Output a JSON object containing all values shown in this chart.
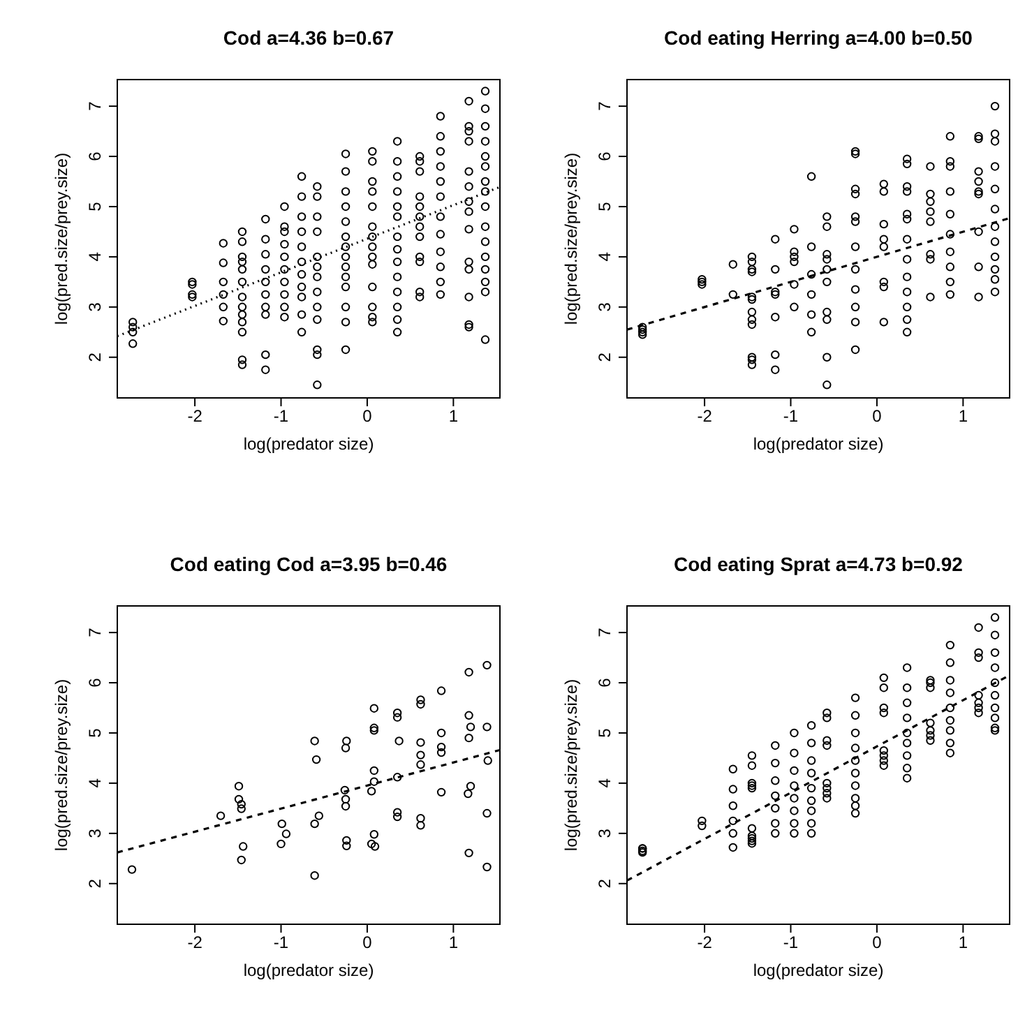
{
  "chart_data": [
    {
      "type": "scatter",
      "title": "Cod a=4.36 b=0.67",
      "xlabel": "log(predator size)",
      "ylabel": "log(pred.size/prey.size)",
      "xlim": [
        -2.9,
        1.54
      ],
      "ylim": [
        1.19,
        7.53
      ],
      "xticks": [
        -2,
        -1,
        0,
        1
      ],
      "yticks": [
        2,
        3,
        4,
        5,
        6,
        7
      ],
      "series": [
        {
          "marker": "circle",
          "color": "#000000",
          "x": [
            -2.72,
            -2.72,
            -2.72,
            -2.72,
            -2.03,
            -2.03,
            -2.03,
            -2.03,
            -1.67,
            -1.67,
            -1.67,
            -1.67,
            -1.67,
            -1.67,
            -1.45,
            -1.45,
            -1.45,
            -1.45,
            -1.45,
            -1.45,
            -1.45,
            -1.45,
            -1.45,
            -1.45,
            -1.45,
            -1.45,
            -1.45,
            -1.18,
            -1.18,
            -1.18,
            -1.18,
            -1.18,
            -1.18,
            -1.18,
            -1.18,
            -1.18,
            -1.18,
            -0.96,
            -0.96,
            -0.96,
            -0.96,
            -0.96,
            -0.96,
            -0.96,
            -0.96,
            -0.96,
            -0.96,
            -0.76,
            -0.76,
            -0.76,
            -0.76,
            -0.76,
            -0.76,
            -0.76,
            -0.76,
            -0.76,
            -0.76,
            -0.76,
            -0.58,
            -0.58,
            -0.58,
            -0.58,
            -0.58,
            -0.58,
            -0.58,
            -0.58,
            -0.58,
            -0.58,
            -0.58,
            -0.58,
            -0.58,
            -0.25,
            -0.25,
            -0.25,
            -0.25,
            -0.25,
            -0.25,
            -0.25,
            -0.25,
            -0.25,
            -0.25,
            -0.25,
            -0.25,
            -0.25,
            -0.25,
            0.06,
            0.06,
            0.06,
            0.06,
            0.06,
            0.06,
            0.06,
            0.06,
            0.06,
            0.06,
            0.06,
            0.06,
            0.06,
            0.06,
            0.35,
            0.35,
            0.35,
            0.35,
            0.35,
            0.35,
            0.35,
            0.35,
            0.35,
            0.35,
            0.35,
            0.35,
            0.35,
            0.35,
            0.61,
            0.61,
            0.61,
            0.61,
            0.61,
            0.61,
            0.61,
            0.61,
            0.61,
            0.61,
            0.61,
            0.61,
            0.85,
            0.85,
            0.85,
            0.85,
            0.85,
            0.85,
            0.85,
            0.85,
            0.85,
            0.85,
            0.85,
            0.85,
            1.18,
            1.18,
            1.18,
            1.18,
            1.18,
            1.18,
            1.18,
            1.18,
            1.18,
            1.18,
            1.18,
            1.18,
            1.18,
            1.18,
            1.37,
            1.37,
            1.37,
            1.37,
            1.37,
            1.37,
            1.37,
            1.37,
            1.37,
            1.37,
            1.37,
            1.37,
            1.37,
            1.37,
            1.37,
            1.37
          ],
          "values": [
            2.27,
            2.5,
            2.6,
            2.7,
            3.2,
            3.25,
            3.45,
            3.5,
            2.72,
            3.0,
            3.25,
            3.5,
            3.88,
            4.27,
            1.85,
            1.95,
            2.5,
            2.7,
            2.85,
            3.0,
            3.2,
            3.5,
            3.75,
            3.9,
            4.0,
            4.3,
            4.5,
            1.75,
            2.05,
            2.85,
            3.0,
            3.25,
            3.5,
            3.75,
            4.05,
            4.35,
            4.75,
            2.8,
            3.0,
            3.25,
            3.5,
            3.75,
            4.0,
            4.25,
            4.5,
            4.6,
            5.0,
            2.5,
            2.85,
            3.2,
            3.4,
            3.65,
            3.9,
            4.2,
            4.5,
            4.8,
            5.2,
            5.6,
            1.45,
            2.05,
            2.15,
            2.75,
            3.0,
            3.3,
            3.6,
            3.8,
            4.0,
            4.5,
            4.8,
            5.2,
            5.4,
            2.15,
            2.7,
            3.0,
            3.4,
            3.6,
            3.8,
            4.0,
            4.2,
            4.4,
            4.7,
            5.0,
            5.3,
            5.7,
            6.05,
            2.7,
            2.8,
            3.0,
            3.4,
            3.85,
            4.0,
            4.2,
            4.4,
            4.6,
            5.0,
            5.3,
            5.5,
            5.9,
            6.1,
            2.5,
            2.75,
            3.0,
            3.3,
            3.6,
            3.9,
            4.15,
            4.4,
            4.8,
            5.0,
            5.3,
            5.6,
            5.9,
            6.3,
            3.2,
            3.3,
            3.9,
            4.0,
            4.4,
            4.6,
            4.8,
            5.0,
            5.2,
            5.7,
            5.9,
            6.0,
            3.25,
            3.5,
            3.8,
            4.1,
            4.45,
            4.8,
            5.2,
            5.5,
            5.8,
            6.1,
            6.4,
            6.8,
            2.6,
            2.65,
            3.2,
            3.75,
            3.9,
            4.55,
            4.9,
            5.1,
            5.4,
            5.7,
            6.3,
            6.5,
            6.6,
            7.1,
            2.35,
            3.3,
            3.5,
            3.75,
            4.0,
            4.3,
            4.6,
            5.0,
            5.3,
            5.5,
            5.8,
            6.0,
            6.3,
            6.6,
            6.95,
            7.3
          ]
        },
        {
          "type": "line",
          "color": "#000000",
          "line_style": "dotted",
          "x": [
            -2.9,
            1.54
          ],
          "values": [
            2.42,
            5.39
          ]
        }
      ]
    },
    {
      "type": "scatter",
      "title": "Cod eating Herring a=4.00 b=0.50",
      "xlabel": "log(predator size)",
      "ylabel": "log(pred.size/prey.size)",
      "xlim": [
        -2.9,
        1.54
      ],
      "ylim": [
        1.19,
        7.53
      ],
      "xticks": [
        -2,
        -1,
        0,
        1
      ],
      "yticks": [
        2,
        3,
        4,
        5,
        6,
        7
      ],
      "series": [
        {
          "marker": "circle",
          "color": "#000000",
          "x": [
            -2.72,
            -2.72,
            -2.72,
            -2.72,
            -2.03,
            -2.03,
            -2.03,
            -1.67,
            -1.67,
            -1.45,
            -1.45,
            -1.45,
            -1.45,
            -1.45,
            -1.45,
            -1.45,
            -1.45,
            -1.45,
            -1.45,
            -1.45,
            -1.45,
            -1.18,
            -1.18,
            -1.18,
            -1.18,
            -1.18,
            -1.18,
            -1.18,
            -0.96,
            -0.96,
            -0.96,
            -0.96,
            -0.96,
            -0.96,
            -0.76,
            -0.76,
            -0.76,
            -0.76,
            -0.76,
            -0.76,
            -0.58,
            -0.58,
            -0.58,
            -0.58,
            -0.58,
            -0.58,
            -0.58,
            -0.58,
            -0.58,
            -0.58,
            -0.25,
            -0.25,
            -0.25,
            -0.25,
            -0.25,
            -0.25,
            -0.25,
            -0.25,
            -0.25,
            -0.25,
            -0.25,
            -0.25,
            0.08,
            0.08,
            0.08,
            0.08,
            0.08,
            0.08,
            0.08,
            0.08,
            0.35,
            0.35,
            0.35,
            0.35,
            0.35,
            0.35,
            0.35,
            0.35,
            0.35,
            0.35,
            0.35,
            0.35,
            0.35,
            0.62,
            0.62,
            0.62,
            0.62,
            0.62,
            0.62,
            0.62,
            0.62,
            0.85,
            0.85,
            0.85,
            0.85,
            0.85,
            0.85,
            0.85,
            0.85,
            0.85,
            0.85,
            1.18,
            1.18,
            1.18,
            1.18,
            1.18,
            1.18,
            1.18,
            1.18,
            1.18,
            1.37,
            1.37,
            1.37,
            1.37,
            1.37,
            1.37,
            1.37,
            1.37,
            1.37,
            1.37,
            1.37,
            1.37
          ],
          "values": [
            2.45,
            2.5,
            2.55,
            2.6,
            3.45,
            3.5,
            3.55,
            3.25,
            3.85,
            1.85,
            1.95,
            2.0,
            2.65,
            2.75,
            2.9,
            3.15,
            3.2,
            3.7,
            3.75,
            3.9,
            4.0,
            1.75,
            2.05,
            2.8,
            3.25,
            3.3,
            3.75,
            4.35,
            3.0,
            3.45,
            3.9,
            4.0,
            4.1,
            4.55,
            2.5,
            2.85,
            3.25,
            3.65,
            4.2,
            5.6,
            1.45,
            2.0,
            2.75,
            2.9,
            3.5,
            3.75,
            3.95,
            4.05,
            4.6,
            4.8,
            2.15,
            2.7,
            3.0,
            3.35,
            3.75,
            4.2,
            4.7,
            4.8,
            5.25,
            5.35,
            6.05,
            6.1,
            2.7,
            3.4,
            3.5,
            4.2,
            4.35,
            4.65,
            5.3,
            5.45,
            2.5,
            2.75,
            3.0,
            3.3,
            3.6,
            3.95,
            4.35,
            4.75,
            4.85,
            5.3,
            5.4,
            5.85,
            5.95,
            3.2,
            3.95,
            4.05,
            4.7,
            4.9,
            5.1,
            5.25,
            5.8,
            3.25,
            3.5,
            3.8,
            4.1,
            4.45,
            4.85,
            5.3,
            5.8,
            5.9,
            6.4,
            3.2,
            3.8,
            4.5,
            5.25,
            5.3,
            5.5,
            5.7,
            6.35,
            6.4,
            3.3,
            3.55,
            3.75,
            4.0,
            4.3,
            4.6,
            4.95,
            5.35,
            5.8,
            6.3,
            6.45,
            7.0
          ]
        },
        {
          "type": "line",
          "color": "#000000",
          "line_style": "dashed",
          "x": [
            -2.9,
            1.54
          ],
          "values": [
            2.55,
            4.77
          ]
        }
      ]
    },
    {
      "type": "scatter",
      "title": "Cod eating Cod a=3.95 b=0.46",
      "xlabel": "log(predator size)",
      "ylabel": "log(pred.size/prey.size)",
      "xlim": [
        -2.9,
        1.54
      ],
      "ylim": [
        1.19,
        7.53
      ],
      "xticks": [
        -2,
        -1,
        0,
        1
      ],
      "yticks": [
        2,
        3,
        4,
        5,
        6,
        7
      ],
      "series": [
        {
          "marker": "circle",
          "color": "#000000",
          "x": [
            -2.73,
            -1.7,
            -1.49,
            -1.46,
            -1.49,
            -1.46,
            -1.44,
            -1.46,
            -0.99,
            -1.0,
            -0.94,
            -0.61,
            -0.59,
            -0.56,
            -0.61,
            -0.61,
            -0.24,
            -0.25,
            -0.26,
            -0.25,
            -0.25,
            -0.24,
            -0.24,
            0.08,
            0.08,
            0.08,
            0.08,
            0.08,
            0.05,
            0.08,
            0.05,
            0.09,
            0.35,
            0.35,
            0.37,
            0.35,
            0.35,
            0.35,
            0.62,
            0.62,
            0.62,
            0.62,
            0.62,
            0.62,
            0.62,
            0.86,
            0.86,
            0.86,
            0.86,
            0.86,
            1.18,
            1.18,
            1.2,
            1.18,
            1.2,
            1.17,
            1.18,
            1.39,
            1.39,
            1.4,
            1.39,
            1.39
          ],
          "values": [
            2.28,
            3.35,
            3.68,
            3.58,
            3.94,
            3.49,
            2.74,
            2.47,
            3.19,
            2.79,
            2.99,
            4.84,
            4.47,
            3.35,
            3.19,
            2.16,
            4.84,
            4.7,
            3.86,
            3.68,
            3.54,
            2.86,
            2.75,
            5.49,
            5.1,
            5.05,
            4.25,
            4.03,
            3.84,
            2.98,
            2.79,
            2.74,
            5.4,
            5.31,
            4.84,
            4.12,
            3.42,
            3.33,
            5.66,
            5.57,
            4.81,
            4.56,
            4.37,
            3.3,
            3.16,
            5.84,
            5.0,
            4.72,
            4.61,
            3.82,
            6.21,
            5.35,
            5.12,
            4.9,
            3.94,
            3.79,
            2.61,
            6.35,
            5.12,
            4.45,
            3.4,
            2.33
          ]
        },
        {
          "type": "line",
          "color": "#000000",
          "line_style": "dashed",
          "x": [
            -2.9,
            1.54
          ],
          "values": [
            2.62,
            4.66
          ]
        }
      ]
    },
    {
      "type": "scatter",
      "title": "Cod eating Sprat a=4.73 b=0.92",
      "xlabel": "log(predator size)",
      "ylabel": "log(pred.size/prey.size)",
      "xlim": [
        -2.9,
        1.54
      ],
      "ylim": [
        1.19,
        7.53
      ],
      "xticks": [
        -2,
        -1,
        0,
        1
      ],
      "yticks": [
        2,
        3,
        4,
        5,
        6,
        7
      ],
      "series": [
        {
          "marker": "circle",
          "color": "#000000",
          "x": [
            -2.72,
            -2.72,
            -2.72,
            -2.72,
            -2.03,
            -2.03,
            -1.67,
            -1.67,
            -1.67,
            -1.67,
            -1.67,
            -1.67,
            -1.45,
            -1.45,
            -1.45,
            -1.45,
            -1.45,
            -1.45,
            -1.45,
            -1.45,
            -1.45,
            -1.45,
            -1.18,
            -1.18,
            -1.18,
            -1.18,
            -1.18,
            -1.18,
            -1.18,
            -0.96,
            -0.96,
            -0.96,
            -0.96,
            -0.96,
            -0.96,
            -0.96,
            -0.96,
            -0.76,
            -0.76,
            -0.76,
            -0.76,
            -0.76,
            -0.76,
            -0.76,
            -0.76,
            -0.76,
            -0.58,
            -0.58,
            -0.58,
            -0.58,
            -0.58,
            -0.58,
            -0.58,
            -0.58,
            -0.25,
            -0.25,
            -0.25,
            -0.25,
            -0.25,
            -0.25,
            -0.25,
            -0.25,
            -0.25,
            -0.25,
            0.08,
            0.08,
            0.08,
            0.08,
            0.08,
            0.08,
            0.08,
            0.08,
            0.35,
            0.35,
            0.35,
            0.35,
            0.35,
            0.35,
            0.35,
            0.35,
            0.35,
            0.62,
            0.62,
            0.62,
            0.62,
            0.62,
            0.62,
            0.62,
            0.85,
            0.85,
            0.85,
            0.85,
            0.85,
            0.85,
            0.85,
            0.85,
            0.85,
            1.18,
            1.18,
            1.18,
            1.18,
            1.18,
            1.18,
            1.18,
            1.37,
            1.37,
            1.37,
            1.37,
            1.37,
            1.37,
            1.37,
            1.37,
            1.37,
            1.37
          ],
          "values": [
            2.62,
            2.65,
            2.7,
            2.7,
            3.15,
            3.25,
            2.72,
            3.0,
            3.25,
            3.55,
            3.88,
            4.28,
            2.8,
            2.85,
            2.9,
            2.95,
            3.1,
            3.9,
            3.95,
            4.0,
            4.35,
            4.55,
            3.0,
            3.2,
            3.5,
            3.75,
            4.05,
            4.4,
            4.75,
            3.0,
            3.2,
            3.45,
            3.7,
            3.95,
            4.25,
            4.6,
            5.0,
            3.0,
            3.2,
            3.45,
            3.65,
            3.9,
            4.2,
            4.45,
            4.8,
            5.15,
            3.7,
            3.8,
            3.9,
            4.0,
            4.75,
            4.85,
            5.3,
            5.4,
            3.4,
            3.55,
            3.7,
            3.95,
            4.2,
            4.45,
            4.7,
            5.0,
            5.35,
            5.7,
            4.35,
            4.45,
            4.55,
            4.65,
            5.4,
            5.5,
            5.9,
            6.1,
            4.1,
            4.3,
            4.55,
            4.8,
            5.0,
            5.3,
            5.6,
            5.9,
            6.3,
            4.85,
            4.95,
            5.05,
            5.2,
            5.9,
            6.0,
            6.05,
            4.6,
            4.8,
            5.05,
            5.25,
            5.5,
            5.8,
            6.05,
            6.4,
            6.75,
            5.4,
            5.5,
            5.6,
            5.75,
            6.5,
            6.6,
            7.1,
            5.05,
            5.1,
            5.3,
            5.5,
            5.75,
            6.0,
            6.3,
            6.6,
            6.95,
            7.3
          ]
        },
        {
          "type": "line",
          "color": "#000000",
          "line_style": "dashed",
          "x": [
            -2.9,
            1.54
          ],
          "values": [
            2.06,
            6.15
          ]
        }
      ]
    }
  ]
}
